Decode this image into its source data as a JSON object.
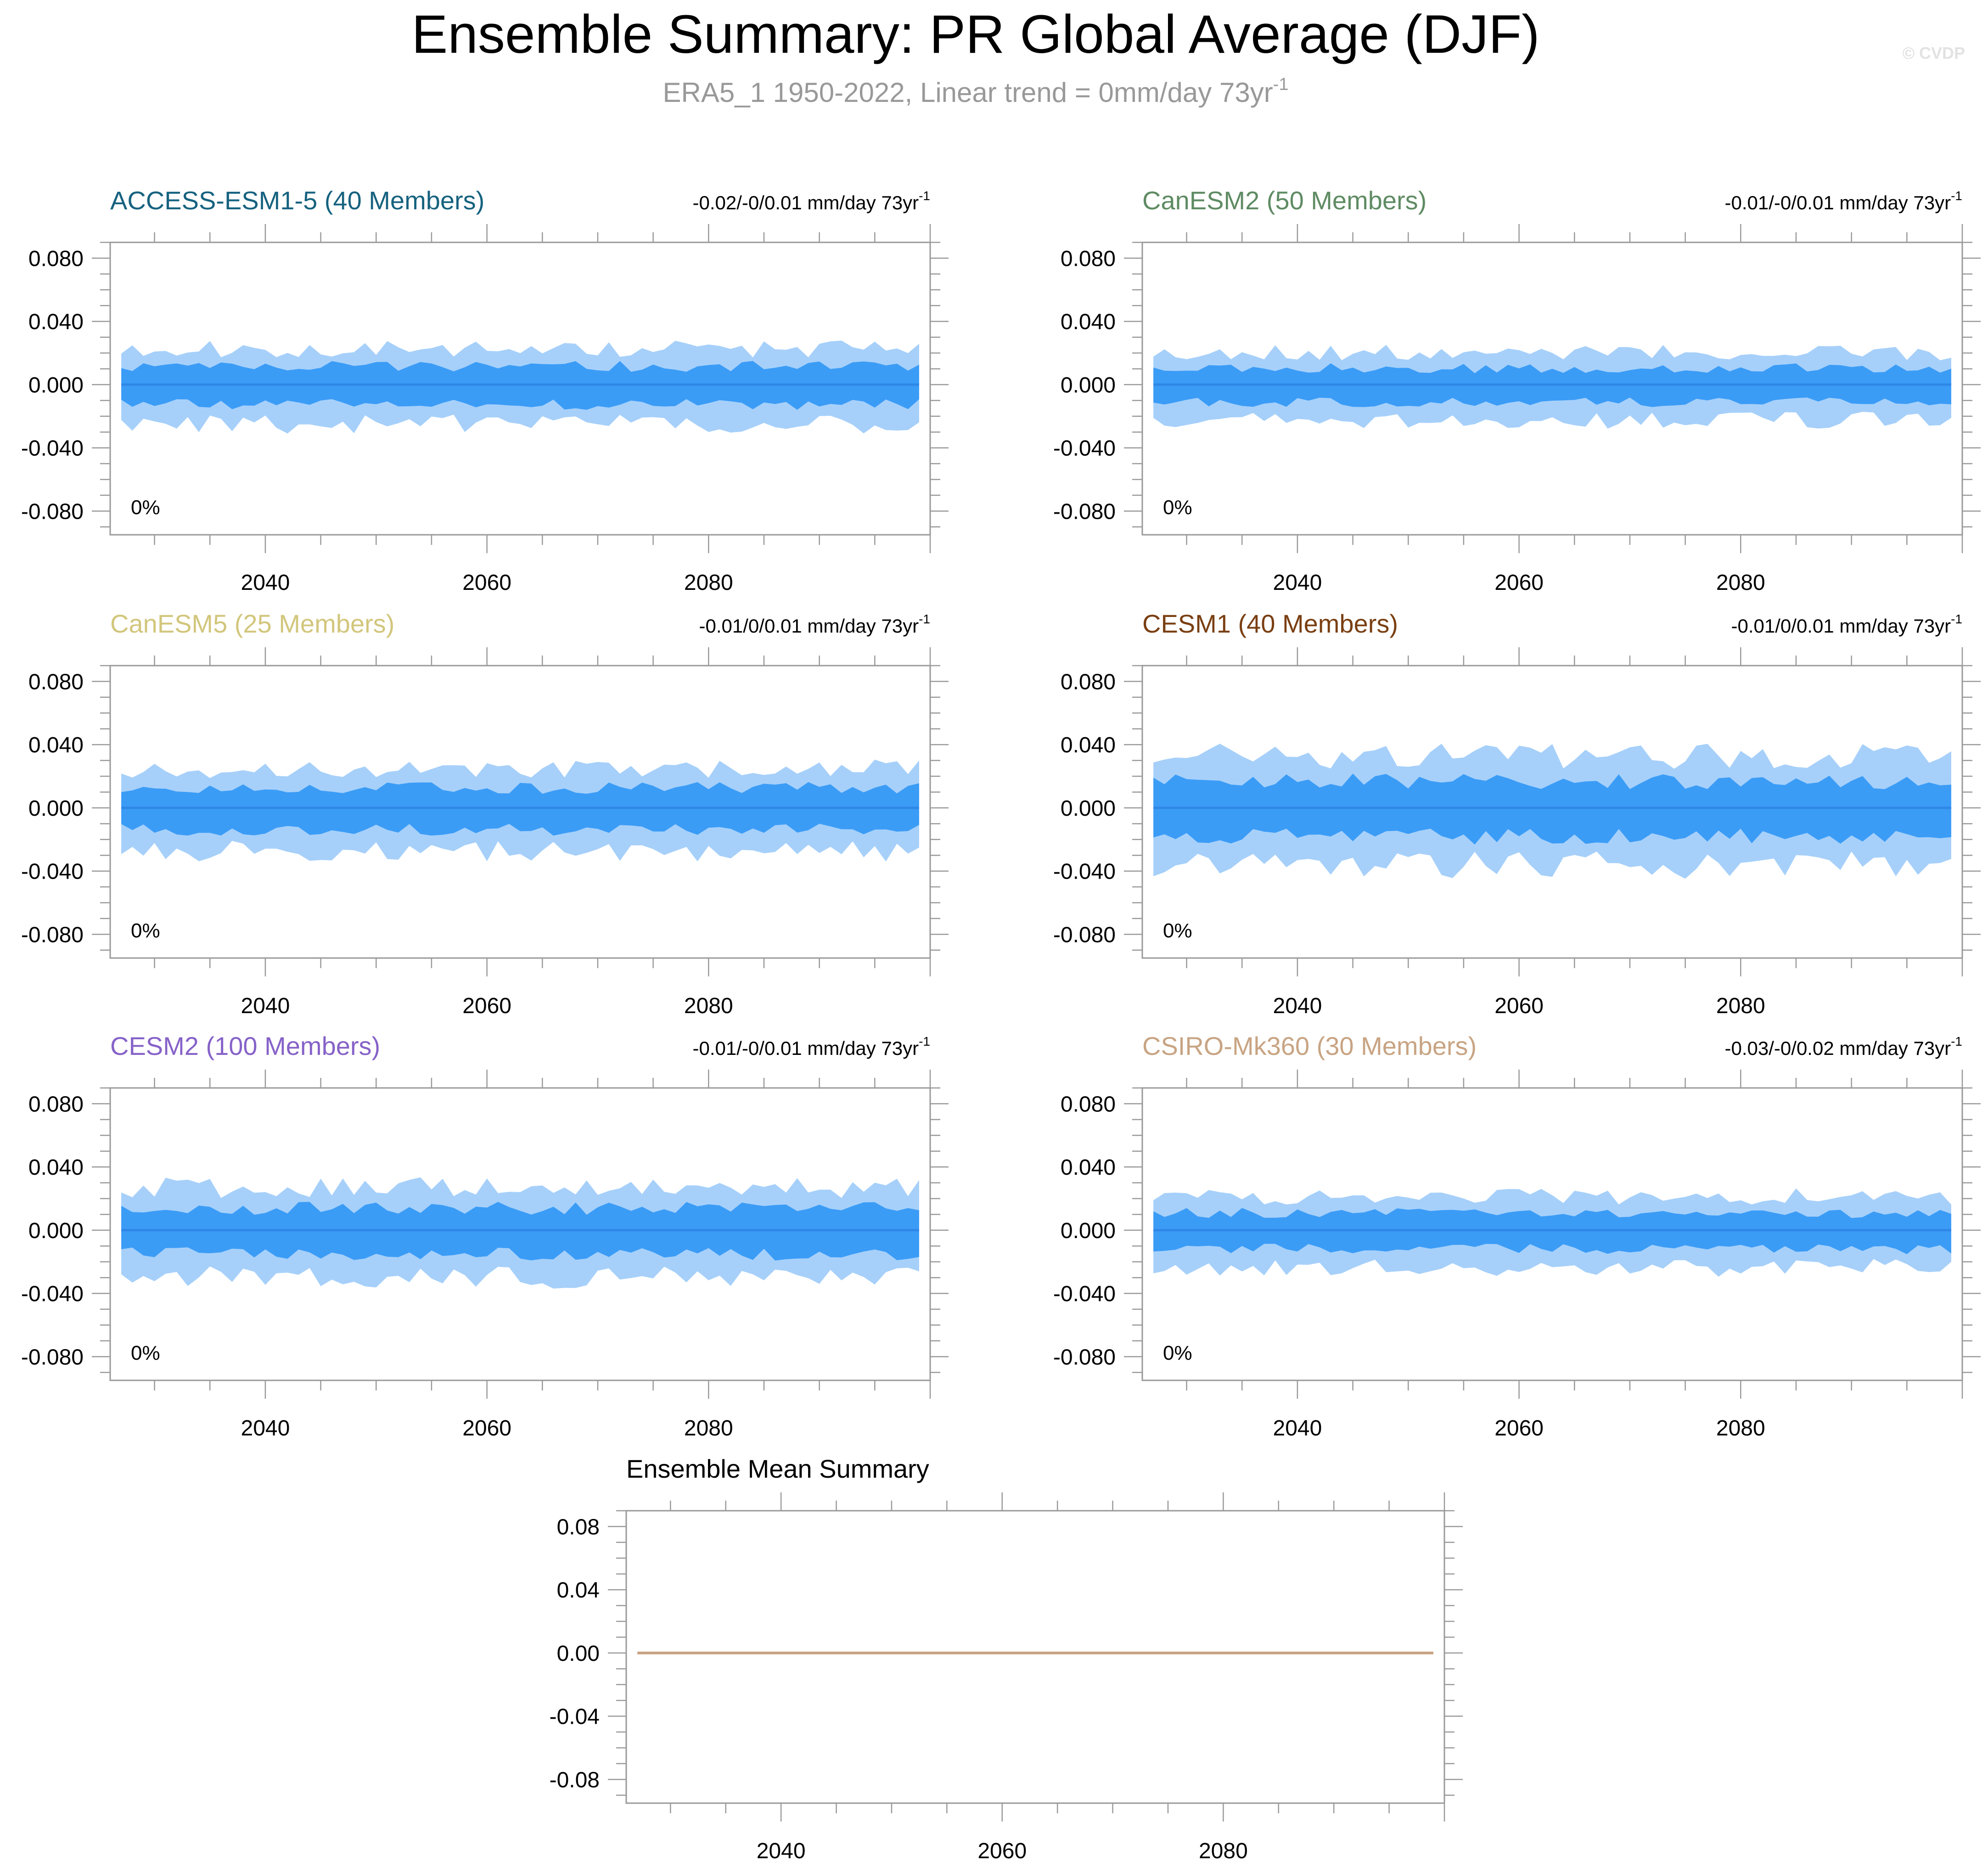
{
  "title": "Ensemble Summary: PR Global Average (DJF)",
  "subtitle": {
    "text": "ERA5_1 1950-2022, Linear trend = 0mm/day 73yr",
    "sup": "-1"
  },
  "watermark": "© CVDP",
  "colors": {
    "outer_band": "#a6d0fa",
    "inner_band": "#3b9cf6",
    "median_line": "#2f86e6",
    "ensemble_mean_line": "#c8a483",
    "axis": "#999999",
    "text": "#000000",
    "subtitle": "#999999"
  },
  "chart_data": [
    {
      "id": "access",
      "type": "area",
      "title": "ACCESS-ESM1-5 (40 Members)",
      "title_color": "#16627f",
      "trend": {
        "text": "-0.02/-0/0.01 mm/day 73yr",
        "sup": "-1"
      },
      "percent_label": "0%",
      "xlim": [
        2026,
        2100
      ],
      "ylim": [
        -0.095,
        0.09
      ],
      "x_ticks": [
        "2040",
        "2060",
        "2080"
      ],
      "y_ticks": [
        "0.080",
        "0.040",
        "0.000",
        "-0.040",
        "-0.080"
      ],
      "amplitude": 1.0,
      "seed": 11
    },
    {
      "id": "canesm2",
      "type": "area",
      "title": "CanESM2 (50 Members)",
      "title_color": "#5f8b63",
      "trend": {
        "text": "-0.01/-0/0.01 mm/day 73yr",
        "sup": "-1"
      },
      "percent_label": "0%",
      "xlim": [
        2026,
        2100
      ],
      "ylim": [
        -0.095,
        0.09
      ],
      "x_ticks": [
        "2040",
        "2060",
        "2080"
      ],
      "y_ticks": [
        "0.080",
        "0.040",
        "0.000",
        "-0.040",
        "-0.080"
      ],
      "amplitude": 0.9,
      "seed": 23
    },
    {
      "id": "canesm5",
      "type": "area",
      "title": "CanESM5 (25 Members)",
      "title_color": "#d2c67c",
      "trend": {
        "text": "-0.01/0/0.01 mm/day 73yr",
        "sup": "-1"
      },
      "percent_label": "0%",
      "xlim": [
        2026,
        2100
      ],
      "ylim": [
        -0.095,
        0.09
      ],
      "x_ticks": [
        "2040",
        "2060",
        "2080"
      ],
      "y_ticks": [
        "0.080",
        "0.040",
        "0.000",
        "-0.040",
        "-0.080"
      ],
      "amplitude": 1.1,
      "seed": 37
    },
    {
      "id": "cesm1",
      "type": "area",
      "title": "CESM1 (40 Members)",
      "title_color": "#7a3f12",
      "trend": {
        "text": "-0.01/0/0.01 mm/day 73yr",
        "sup": "-1"
      },
      "percent_label": "0%",
      "xlim": [
        2026,
        2100
      ],
      "ylim": [
        -0.095,
        0.09
      ],
      "x_ticks": [
        "2040",
        "2060",
        "2080"
      ],
      "y_ticks": [
        "0.080",
        "0.040",
        "0.000",
        "-0.040",
        "-0.080"
      ],
      "amplitude": 1.45,
      "seed": 51
    },
    {
      "id": "cesm2",
      "type": "area",
      "title": "CESM2 (100 Members)",
      "title_color": "#8662c8",
      "trend": {
        "text": "-0.01/-0/0.01 mm/day 73yr",
        "sup": "-1"
      },
      "percent_label": "0%",
      "xlim": [
        2026,
        2100
      ],
      "ylim": [
        -0.095,
        0.09
      ],
      "x_ticks": [
        "2040",
        "2060",
        "2080"
      ],
      "y_ticks": [
        "0.080",
        "0.040",
        "0.000",
        "-0.040",
        "-0.080"
      ],
      "amplitude": 1.2,
      "seed": 67
    },
    {
      "id": "csiro",
      "type": "area",
      "title": "CSIRO-Mk360 (30 Members)",
      "title_color": "#c8a483",
      "trend": {
        "text": "-0.03/-0/0.02 mm/day 73yr",
        "sup": "-1"
      },
      "percent_label": "0%",
      "xlim": [
        2026,
        2100
      ],
      "ylim": [
        -0.095,
        0.09
      ],
      "x_ticks": [
        "2040",
        "2060",
        "2080"
      ],
      "y_ticks": [
        "0.080",
        "0.040",
        "0.000",
        "-0.040",
        "-0.080"
      ],
      "amplitude": 0.95,
      "seed": 83
    },
    {
      "id": "mean",
      "type": "line",
      "title": "Ensemble Mean Summary",
      "title_color": "#000000",
      "xlim": [
        2026,
        2100
      ],
      "ylim": [
        -0.095,
        0.09
      ],
      "x_ticks": [
        "2040",
        "2060",
        "2080"
      ],
      "y_ticks": [
        "0.08",
        "0.04",
        "0.00",
        "-0.04",
        "-0.08"
      ],
      "series": [
        {
          "name": "ensemble mean",
          "x": [
            2027,
            2099
          ],
          "values": [
            0.0,
            0.0
          ]
        }
      ]
    }
  ]
}
